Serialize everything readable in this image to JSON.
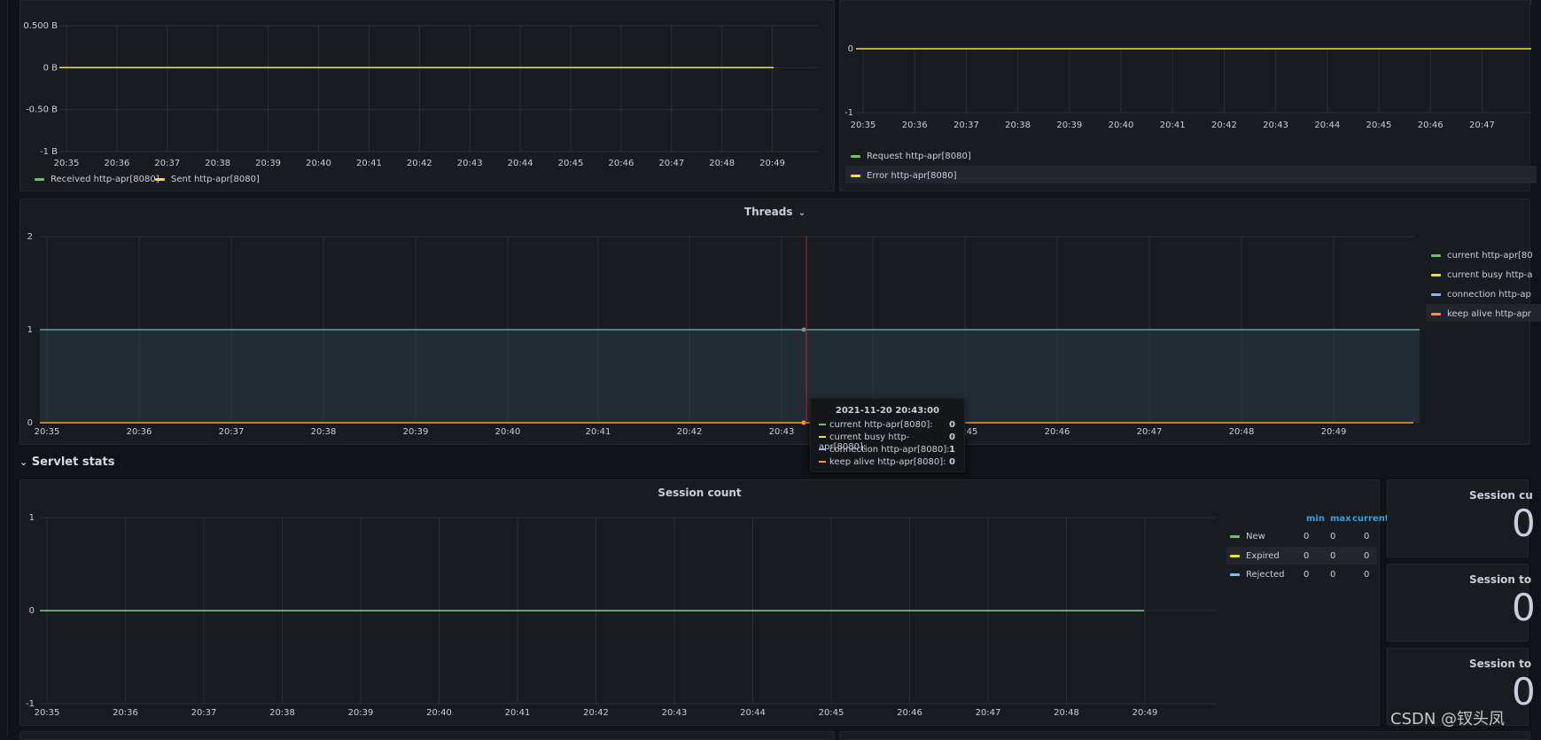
{
  "top_left": {
    "x_ticks": [
      "20:35",
      "20:36",
      "20:37",
      "20:38",
      "20:39",
      "20:40",
      "20:41",
      "20:42",
      "20:43",
      "20:44",
      "20:45",
      "20:46",
      "20:47",
      "20:48",
      "20:49"
    ],
    "y_ticks": [
      "0.500 B",
      "0 B",
      "-0.50 B",
      "-1 B"
    ],
    "legend": [
      {
        "label": "Received http-apr[8080]",
        "color": "#73bf69"
      },
      {
        "label": "Sent http-apr[8080]",
        "color": "#fade2a"
      }
    ]
  },
  "top_right": {
    "x_ticks": [
      "20:35",
      "20:36",
      "20:37",
      "20:38",
      "20:39",
      "20:40",
      "20:41",
      "20:42",
      "20:43",
      "20:44",
      "20:45",
      "20:46",
      "20:47"
    ],
    "y_ticks": [
      "0",
      "-1"
    ],
    "legend": [
      {
        "label": "Request http-apr[8080]",
        "color": "#73bf69"
      },
      {
        "label": "Error http-apr[8080]",
        "color": "#fade2a"
      }
    ]
  },
  "threads": {
    "title": "Threads",
    "x_ticks": [
      "20:35",
      "20:36",
      "20:37",
      "20:38",
      "20:39",
      "20:40",
      "20:41",
      "20:42",
      "20:43",
      "20:45",
      "20:46",
      "20:47",
      "20:48",
      "20:49"
    ],
    "y_ticks": [
      "2",
      "1",
      "0"
    ],
    "legend": [
      {
        "label": "current http-apr[80",
        "color": "#73bf69"
      },
      {
        "label": "current busy http-a",
        "color": "#fade2a"
      },
      {
        "label": "connection http-ap",
        "color": "#8ab8ff"
      },
      {
        "label": "keep alive http-apr",
        "color": "#ff9830"
      }
    ],
    "tooltip": {
      "time": "2021-11-20 20:43:00",
      "rows": [
        {
          "label": "current http-apr[8080]:",
          "value": "0",
          "color": "#73bf69"
        },
        {
          "label": "current busy http-apr[8080]:",
          "value": "0",
          "color": "#fade2a"
        },
        {
          "label": "connection http-apr[8080]:",
          "value": "1",
          "color": "#8ab8ff"
        },
        {
          "label": "keep alive http-apr[8080]:",
          "value": "0",
          "color": "#ff9830"
        }
      ]
    }
  },
  "section": {
    "chevron": "⌄",
    "title": "Servlet stats"
  },
  "session_count": {
    "title": "Session count",
    "x_ticks": [
      "20:35",
      "20:36",
      "20:37",
      "20:38",
      "20:39",
      "20:40",
      "20:41",
      "20:42",
      "20:43",
      "20:44",
      "20:45",
      "20:46",
      "20:47",
      "20:48",
      "20:49"
    ],
    "y_ticks": [
      "1",
      "0",
      "-1"
    ],
    "table_headers": [
      "min",
      "max",
      "current"
    ],
    "legend": [
      {
        "label": "New",
        "color": "#73bf69",
        "min": "0",
        "max": "0",
        "current": "0"
      },
      {
        "label": "Expired",
        "color": "#fade2a",
        "min": "0",
        "max": "0",
        "current": "0"
      },
      {
        "label": "Rejected",
        "color": "#8ab8ff",
        "min": "0",
        "max": "0",
        "current": "0"
      }
    ]
  },
  "stats": [
    {
      "title": "Session cu",
      "value": "0"
    },
    {
      "title": "Session to",
      "value": "0"
    },
    {
      "title": "Session to",
      "value": "0"
    }
  ],
  "watermark": "CSDN @钗头凤",
  "colors": {
    "background": "#111217",
    "panel": "#181b1f",
    "green": "#73bf69",
    "yellow": "#fade2a",
    "blue": "#8ab8ff",
    "orange": "#ff9830",
    "accent_header": "#33a2e5"
  }
}
